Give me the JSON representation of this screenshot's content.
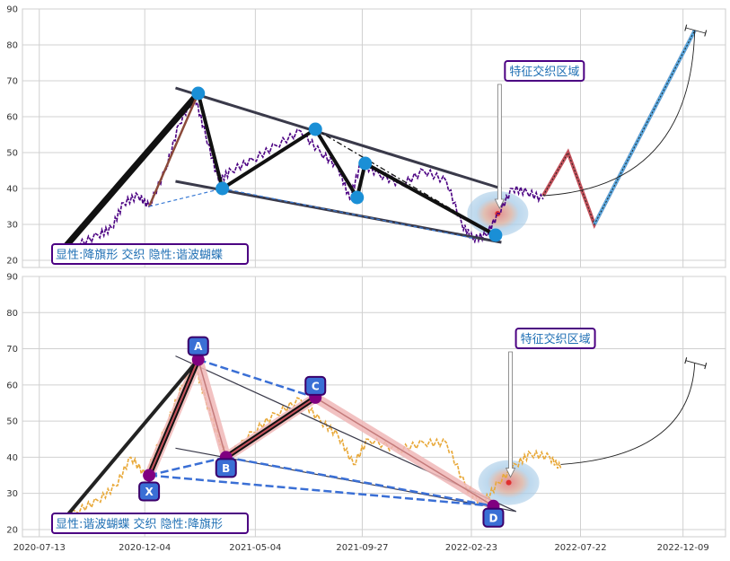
{
  "chart_data": [
    {
      "type": "line",
      "panel": "top",
      "ylim": [
        18,
        90
      ],
      "y_ticks": [
        20,
        30,
        40,
        50,
        60,
        70,
        80,
        90
      ],
      "xlim": [
        "2020-06-20",
        "2023-02-05"
      ],
      "grid": true,
      "annotations": {
        "pattern_box": "显性:降旗形 交织 隐性:谐波蝴蝶",
        "zone_label": "特征交织区域"
      },
      "price_series": {
        "color": "#4b0082",
        "points": [
          [
            "2020-08-01",
            21
          ],
          [
            "2020-09-01",
            24
          ],
          [
            "2020-10-01",
            27
          ],
          [
            "2020-10-20",
            29
          ],
          [
            "2020-11-05",
            36
          ],
          [
            "2020-11-25",
            38
          ],
          [
            "2020-12-10",
            35
          ],
          [
            "2021-01-01",
            45
          ],
          [
            "2021-01-20",
            58
          ],
          [
            "2021-02-10",
            66
          ],
          [
            "2021-02-25",
            55
          ],
          [
            "2021-03-15",
            42
          ],
          [
            "2021-04-01",
            45
          ],
          [
            "2021-05-01",
            48
          ],
          [
            "2021-06-01",
            52
          ],
          [
            "2021-07-05",
            56
          ],
          [
            "2021-08-01",
            50
          ],
          [
            "2021-08-25",
            46
          ],
          [
            "2021-09-10",
            37
          ],
          [
            "2021-09-25",
            47
          ],
          [
            "2021-10-20",
            44
          ],
          [
            "2021-11-20",
            41
          ],
          [
            "2021-12-20",
            45
          ],
          [
            "2022-01-20",
            42
          ],
          [
            "2022-02-10",
            30
          ],
          [
            "2022-02-25",
            26
          ],
          [
            "2022-03-15",
            27
          ],
          [
            "2022-04-01",
            33
          ],
          [
            "2022-04-20",
            40
          ],
          [
            "2022-05-10",
            39
          ],
          [
            "2022-06-01",
            37
          ]
        ]
      },
      "flag_lines": [
        {
          "from": [
            "2021-01-15",
            68
          ],
          "to": [
            "2022-04-05",
            40
          ],
          "color": "#3a3a4a"
        },
        {
          "from": [
            "2021-01-15",
            42
          ],
          "to": [
            "2022-04-05",
            25
          ],
          "color": "#3a3a4a"
        }
      ],
      "zigzag": {
        "points": [
          [
            "2020-08-10",
            22
          ],
          [
            "2021-02-15",
            66.5
          ],
          [
            "2021-03-20",
            40
          ],
          [
            "2021-07-25",
            56.5
          ],
          [
            "2021-09-20",
            37.5
          ],
          [
            "2021-10-01",
            47
          ],
          [
            "2022-03-28",
            27
          ]
        ],
        "color": "#111111"
      },
      "forecast": {
        "points": [
          [
            "2022-06-01",
            38
          ],
          [
            "2022-07-05",
            50
          ],
          [
            "2022-08-10",
            30
          ],
          [
            "2022-12-25",
            84
          ]
        ],
        "color": "#c4515b"
      },
      "forecast_arc": {
        "from": [
          "2022-06-01",
          38
        ],
        "to": [
          "2022-12-25",
          84
        ]
      },
      "key_points": [
        [
          "2020-08-10",
          22
        ],
        [
          "2021-02-15",
          66.5
        ],
        [
          "2021-03-20",
          40
        ],
        [
          "2021-07-25",
          56.5
        ],
        [
          "2021-09-20",
          37.5
        ],
        [
          "2021-10-01",
          47
        ],
        [
          "2022-03-28",
          27
        ]
      ],
      "zone_center": [
        "2022-03-31",
        33
      ]
    },
    {
      "type": "line",
      "panel": "bottom",
      "ylim": [
        18,
        90
      ],
      "y_ticks": [
        20,
        30,
        40,
        50,
        60,
        70,
        80,
        90
      ],
      "xlim": [
        "2020-06-20",
        "2023-02-05"
      ],
      "x_tick_labels": [
        "2020-07-13",
        "2020-12-04",
        "2021-05-04",
        "2021-09-27",
        "2022-02-23",
        "2022-07-22",
        "2022-12-09"
      ],
      "grid": true,
      "annotations": {
        "pattern_box": "显性:谐波蝴蝶 交织 隐性:降旗形",
        "zone_label": "特征交织区域"
      },
      "price_series": {
        "color": "#e8a838",
        "points": [
          [
            "2020-08-01",
            21
          ],
          [
            "2020-09-01",
            25
          ],
          [
            "2020-10-01",
            28
          ],
          [
            "2020-10-25",
            32
          ],
          [
            "2020-11-15",
            40
          ],
          [
            "2020-12-05",
            35
          ],
          [
            "2021-01-01",
            48
          ],
          [
            "2021-01-25",
            60
          ],
          [
            "2021-02-10",
            66
          ],
          [
            "2021-02-25",
            56
          ],
          [
            "2021-03-15",
            45
          ],
          [
            "2021-03-28",
            40
          ],
          [
            "2021-05-01",
            47
          ],
          [
            "2021-06-01",
            52
          ],
          [
            "2021-07-05",
            56
          ],
          [
            "2021-08-01",
            50
          ],
          [
            "2021-08-25",
            46
          ],
          [
            "2021-09-15",
            38
          ],
          [
            "2021-10-05",
            45
          ],
          [
            "2021-11-15",
            42
          ],
          [
            "2021-12-20",
            44
          ],
          [
            "2022-01-20",
            44
          ],
          [
            "2022-02-15",
            32
          ],
          [
            "2022-03-10",
            27
          ],
          [
            "2022-04-01",
            33
          ],
          [
            "2022-04-25",
            38
          ],
          [
            "2022-05-15",
            41
          ],
          [
            "2022-06-10",
            40
          ],
          [
            "2022-06-25",
            37
          ]
        ]
      },
      "harmonic": {
        "X": [
          "2020-12-10",
          35
        ],
        "A": [
          "2021-02-15",
          67
        ],
        "B": [
          "2021-03-25",
          40
        ],
        "C": [
          "2021-07-25",
          56.5
        ],
        "D": [
          "2022-03-25",
          26.5
        ],
        "start": [
          "2020-08-10",
          21.5
        ],
        "labels": {
          "X": "X",
          "A": "A",
          "B": "B",
          "C": "C",
          "D": "D"
        }
      },
      "flag_lines": [
        {
          "from": [
            "2021-01-15",
            68
          ],
          "to": [
            "2022-04-25",
            25
          ],
          "color": "#3a3a4a"
        },
        {
          "from": [
            "2021-01-15",
            42.5
          ],
          "to": [
            "2022-04-25",
            25
          ],
          "color": "#3a3a4a"
        }
      ],
      "forecast_arc": {
        "from": [
          "2022-06-25",
          38
        ],
        "to": [
          "2022-12-25",
          66
        ]
      },
      "zone_center": [
        "2022-04-15",
        33
      ]
    }
  ]
}
